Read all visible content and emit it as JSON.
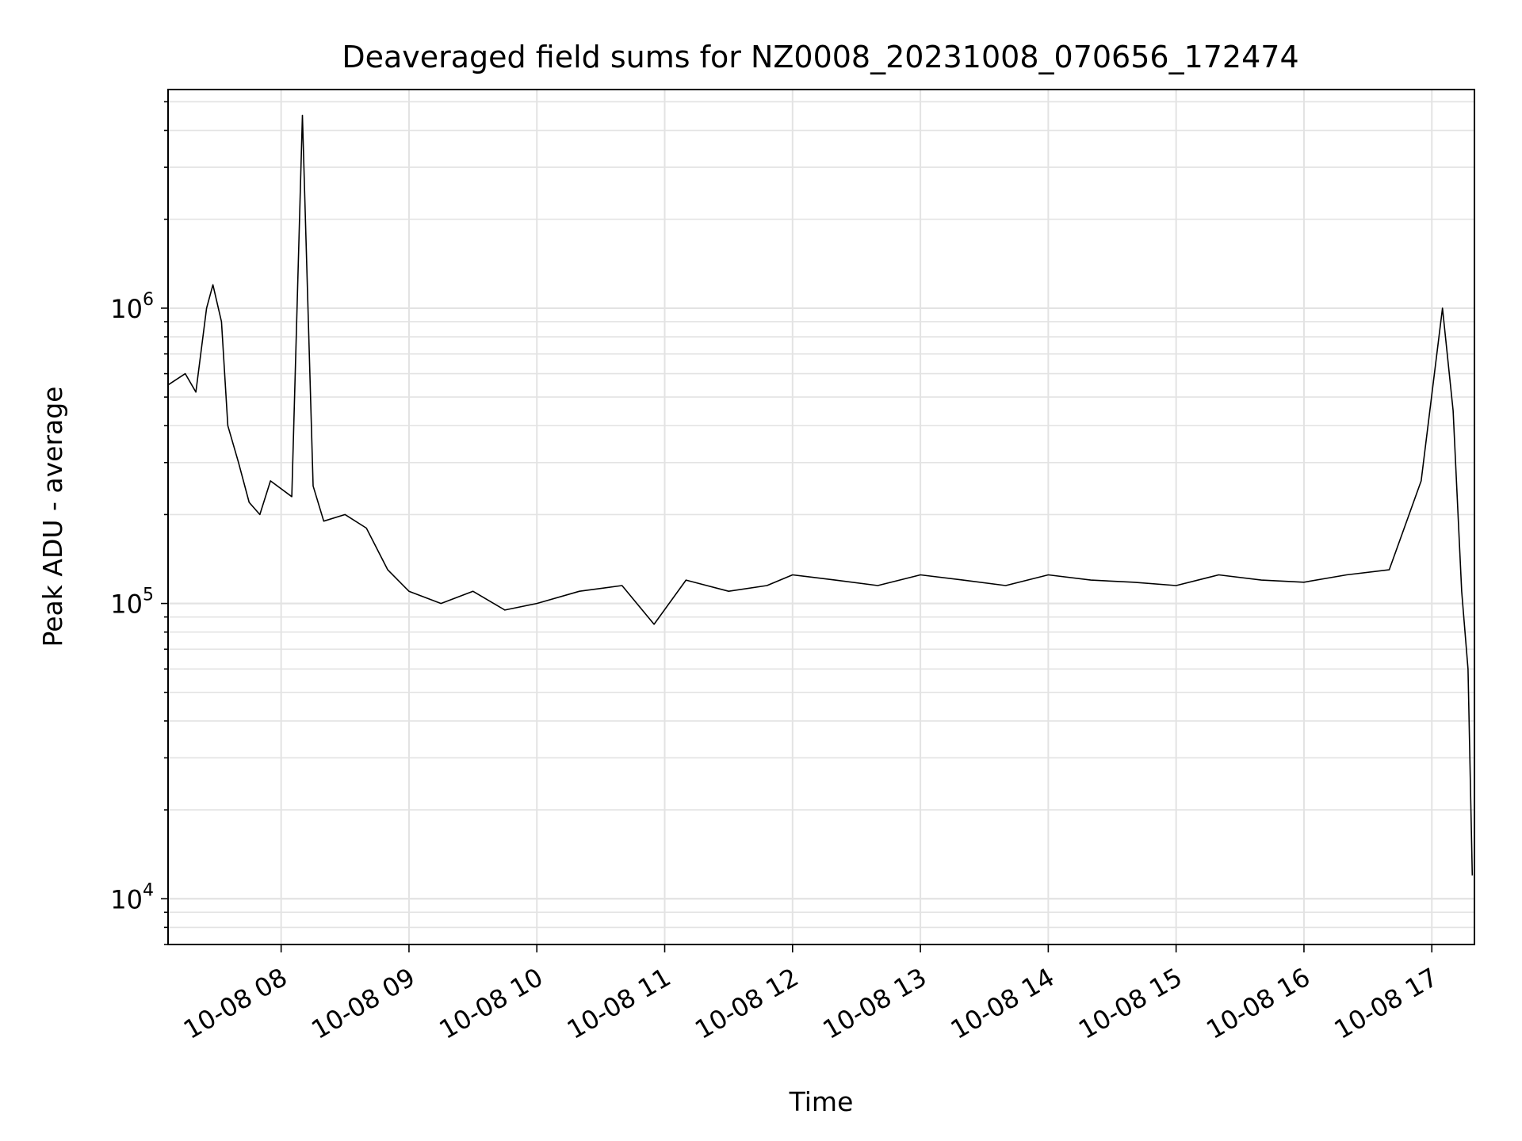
{
  "chart_data": {
    "type": "line",
    "title": "Deaveraged field sums for NZ0008_20231008_070656_172474",
    "xlabel": "Time",
    "ylabel": "Peak ADU - average",
    "yscale": "log",
    "ylim": [
      7000,
      5500000
    ],
    "xlim": [
      "2023-10-08 07:06:56",
      "2023-10-08 17:20:00"
    ],
    "grid": true,
    "line_color": "#000000",
    "x_ticks": [
      {
        "x": "2023-10-08 08:00",
        "label": "10-08 08"
      },
      {
        "x": "2023-10-08 09:00",
        "label": "10-08 09"
      },
      {
        "x": "2023-10-08 10:00",
        "label": "10-08 10"
      },
      {
        "x": "2023-10-08 11:00",
        "label": "10-08 11"
      },
      {
        "x": "2023-10-08 12:00",
        "label": "10-08 12"
      },
      {
        "x": "2023-10-08 13:00",
        "label": "10-08 13"
      },
      {
        "x": "2023-10-08 14:00",
        "label": "10-08 14"
      },
      {
        "x": "2023-10-08 15:00",
        "label": "10-08 15"
      },
      {
        "x": "2023-10-08 16:00",
        "label": "10-08 16"
      },
      {
        "x": "2023-10-08 17:00",
        "label": "10-08 17"
      }
    ],
    "y_ticks": [
      {
        "y": 10000,
        "base": "10",
        "exp": "4"
      },
      {
        "y": 100000,
        "base": "10",
        "exp": "5"
      },
      {
        "y": 1000000,
        "base": "10",
        "exp": "6"
      }
    ],
    "series": [
      {
        "x": [
          "2023-10-08 07:07",
          "2023-10-08 07:15",
          "2023-10-08 07:20",
          "2023-10-08 07:25",
          "2023-10-08 07:28",
          "2023-10-08 07:32",
          "2023-10-08 07:35",
          "2023-10-08 07:40",
          "2023-10-08 07:45",
          "2023-10-08 07:50",
          "2023-10-08 07:55",
          "2023-10-08 08:05",
          "2023-10-08 08:10",
          "2023-10-08 08:15",
          "2023-10-08 08:20",
          "2023-10-08 08:30",
          "2023-10-08 08:40",
          "2023-10-08 08:50",
          "2023-10-08 09:00",
          "2023-10-08 09:15",
          "2023-10-08 09:30",
          "2023-10-08 09:45",
          "2023-10-08 10:00",
          "2023-10-08 10:20",
          "2023-10-08 10:40",
          "2023-10-08 10:55",
          "2023-10-08 11:10",
          "2023-10-08 11:30",
          "2023-10-08 11:48",
          "2023-10-08 12:00",
          "2023-10-08 12:20",
          "2023-10-08 12:40",
          "2023-10-08 13:00",
          "2023-10-08 13:20",
          "2023-10-08 13:40",
          "2023-10-08 14:00",
          "2023-10-08 14:20",
          "2023-10-08 14:40",
          "2023-10-08 15:00",
          "2023-10-08 15:20",
          "2023-10-08 15:40",
          "2023-10-08 16:00",
          "2023-10-08 16:20",
          "2023-10-08 16:40",
          "2023-10-08 16:55",
          "2023-10-08 17:05",
          "2023-10-08 17:10",
          "2023-10-08 17:14",
          "2023-10-08 17:17",
          "2023-10-08 17:19"
        ],
        "y": [
          550000,
          600000,
          520000,
          1000000,
          1200000,
          900000,
          400000,
          300000,
          220000,
          200000,
          260000,
          230000,
          4500000,
          250000,
          190000,
          200000,
          180000,
          130000,
          110000,
          100000,
          110000,
          95000,
          100000,
          110000,
          115000,
          85000,
          120000,
          110000,
          115000,
          125000,
          120000,
          115000,
          125000,
          120000,
          115000,
          125000,
          120000,
          118000,
          115000,
          125000,
          120000,
          118000,
          125000,
          130000,
          260000,
          1000000,
          450000,
          110000,
          60000,
          12000
        ]
      }
    ]
  }
}
